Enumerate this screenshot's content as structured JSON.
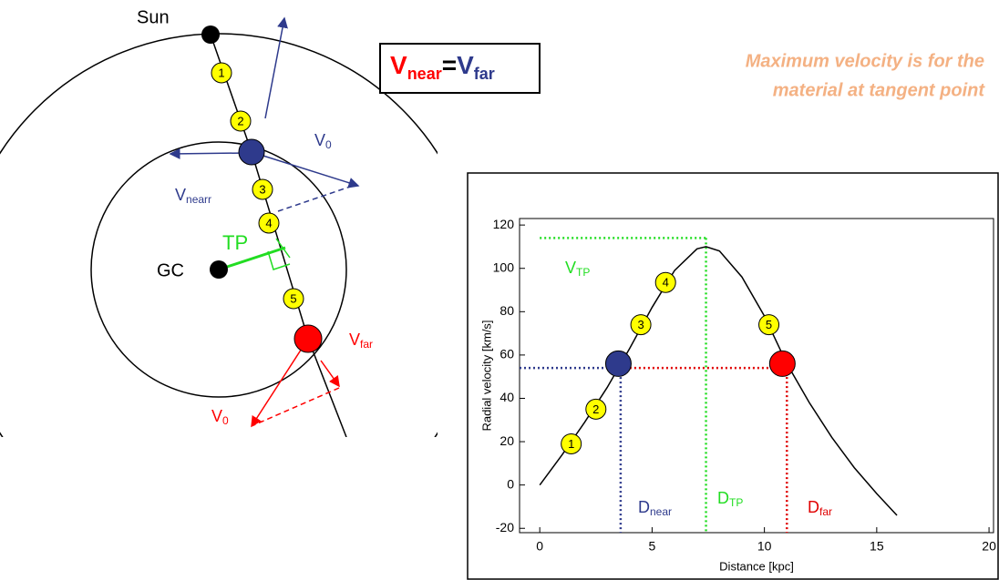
{
  "diagram": {
    "sun": "Sun",
    "gc": "GC",
    "tp": "TP",
    "v0_blue": {
      "main": "V",
      "sub": "0"
    },
    "v_near": {
      "main": "V",
      "sub": "nearr"
    },
    "v_far": {
      "main": "V",
      "sub": "far"
    },
    "v0_red": {
      "main": "V",
      "sub": "0"
    },
    "markers": [
      "1",
      "2",
      "3",
      "4",
      "5"
    ]
  },
  "equation": {
    "left": {
      "main": "V",
      "sub": "near"
    },
    "op": "=",
    "right": {
      "main": "V",
      "sub": "far"
    }
  },
  "note": [
    "Maximum velocity is for the",
    "material at tangent point"
  ],
  "chart_data": {
    "type": "line",
    "x": [
      0,
      1,
      2,
      3,
      4,
      5,
      6,
      7,
      7.4,
      8,
      9,
      10,
      11,
      12,
      13,
      14,
      15,
      15.9
    ],
    "values": [
      0,
      14,
      29,
      45,
      63,
      82,
      99,
      109,
      110,
      108,
      96,
      78,
      56,
      38,
      22,
      8,
      -4,
      -14
    ],
    "color": "#000000",
    "xlabel": "Distance [kpc]",
    "ylabel": "Radial velocity [km/s]",
    "xlim": [
      -0.9,
      20.2
    ],
    "ylim": [
      -22,
      123
    ],
    "xticks": [
      0,
      5,
      10,
      15,
      20
    ],
    "yticks": [
      -20,
      0,
      20,
      40,
      60,
      80,
      100,
      120
    ],
    "markers": {
      "labels": [
        "1",
        "2",
        "3",
        "4",
        "5"
      ],
      "x": [
        1.4,
        2.5,
        4.5,
        5.6,
        10.2
      ],
      "y": [
        19,
        35,
        74,
        93.5,
        74
      ]
    },
    "near_point": {
      "x": 3.5,
      "y": 56,
      "color": "#2e3a8c"
    },
    "far_point": {
      "x": 10.8,
      "y": 56,
      "color": "#ff0000"
    },
    "v_obs": 54,
    "v_tp": 114,
    "d_near": 3.6,
    "d_tp": 7.4,
    "d_far": 11,
    "labels": {
      "v_tp": {
        "main": "V",
        "sub": "TP"
      },
      "d_near": {
        "main": "D",
        "sub": "near"
      },
      "d_tp": {
        "main": "D",
        "sub": "TP"
      },
      "d_far": {
        "main": "D",
        "sub": "far"
      }
    }
  }
}
